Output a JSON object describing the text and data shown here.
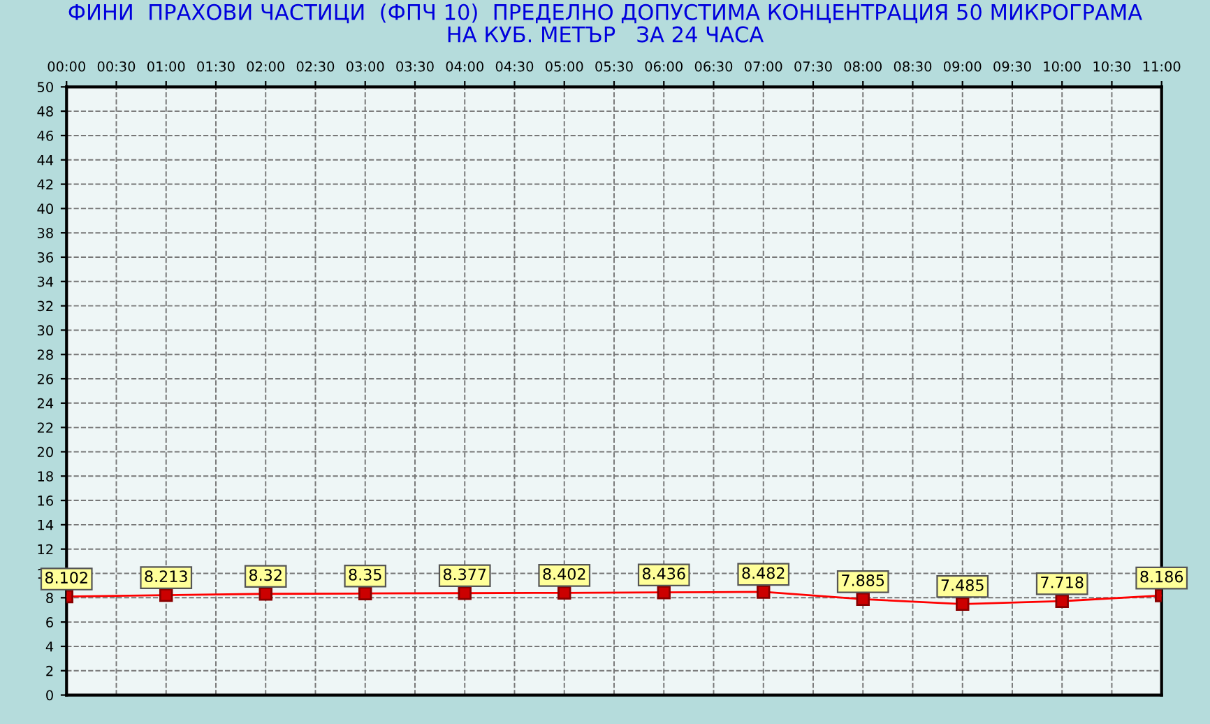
{
  "chart_data": {
    "type": "line",
    "title": "ФИНИ  ПРАХОВИ ЧАСТИЦИ  (ФПЧ 10)  ПРЕДЕЛНО ДОПУСТИМА КОНЦЕНТРАЦИЯ 50 МИКРОГРАМА\nНА КУБ. МЕТЪР   ЗА 24 ЧАСА",
    "x": [
      0,
      1,
      2,
      3,
      4,
      5,
      6,
      7,
      8,
      9,
      10,
      11
    ],
    "series": [
      {
        "color": "#ff0000",
        "values": [
          8.102,
          8.213,
          8.32,
          8.35,
          8.377,
          8.402,
          8.436,
          8.482,
          7.885,
          7.485,
          7.718,
          8.186
        ]
      }
    ],
    "xlim": [
      0,
      11
    ],
    "xticks": [
      {
        "value": 0,
        "label": "00:00"
      },
      {
        "value": 0.5,
        "label": "00:30"
      },
      {
        "value": 1,
        "label": "01:00"
      },
      {
        "value": 1.5,
        "label": "01:30"
      },
      {
        "value": 2,
        "label": "02:00"
      },
      {
        "value": 2.5,
        "label": "02:30"
      },
      {
        "value": 3,
        "label": "03:00"
      },
      {
        "value": 3.5,
        "label": "03:30"
      },
      {
        "value": 4,
        "label": "04:00"
      },
      {
        "value": 4.5,
        "label": "04:30"
      },
      {
        "value": 5,
        "label": "05:00"
      },
      {
        "value": 5.5,
        "label": "05:30"
      },
      {
        "value": 6,
        "label": "06:00"
      },
      {
        "value": 6.5,
        "label": "06:30"
      },
      {
        "value": 7,
        "label": "07:00"
      },
      {
        "value": 7.5,
        "label": "07:30"
      },
      {
        "value": 8,
        "label": "08:00"
      },
      {
        "value": 8.5,
        "label": "08:30"
      },
      {
        "value": 9,
        "label": "09:00"
      },
      {
        "value": 9.5,
        "label": "09:30"
      },
      {
        "value": 10,
        "label": "10:00"
      },
      {
        "value": 10.5,
        "label": "10:30"
      },
      {
        "value": 11,
        "label": "11:00"
      }
    ],
    "ylim": [
      0,
      50
    ],
    "yticks": [
      0,
      2,
      4,
      6,
      8,
      10,
      12,
      14,
      16,
      18,
      20,
      22,
      24,
      26,
      28,
      30,
      32,
      34,
      36,
      38,
      40,
      42,
      44,
      46,
      48,
      50
    ],
    "grid": true,
    "marker": "square",
    "line_style": "solid",
    "data_labels": true
  }
}
